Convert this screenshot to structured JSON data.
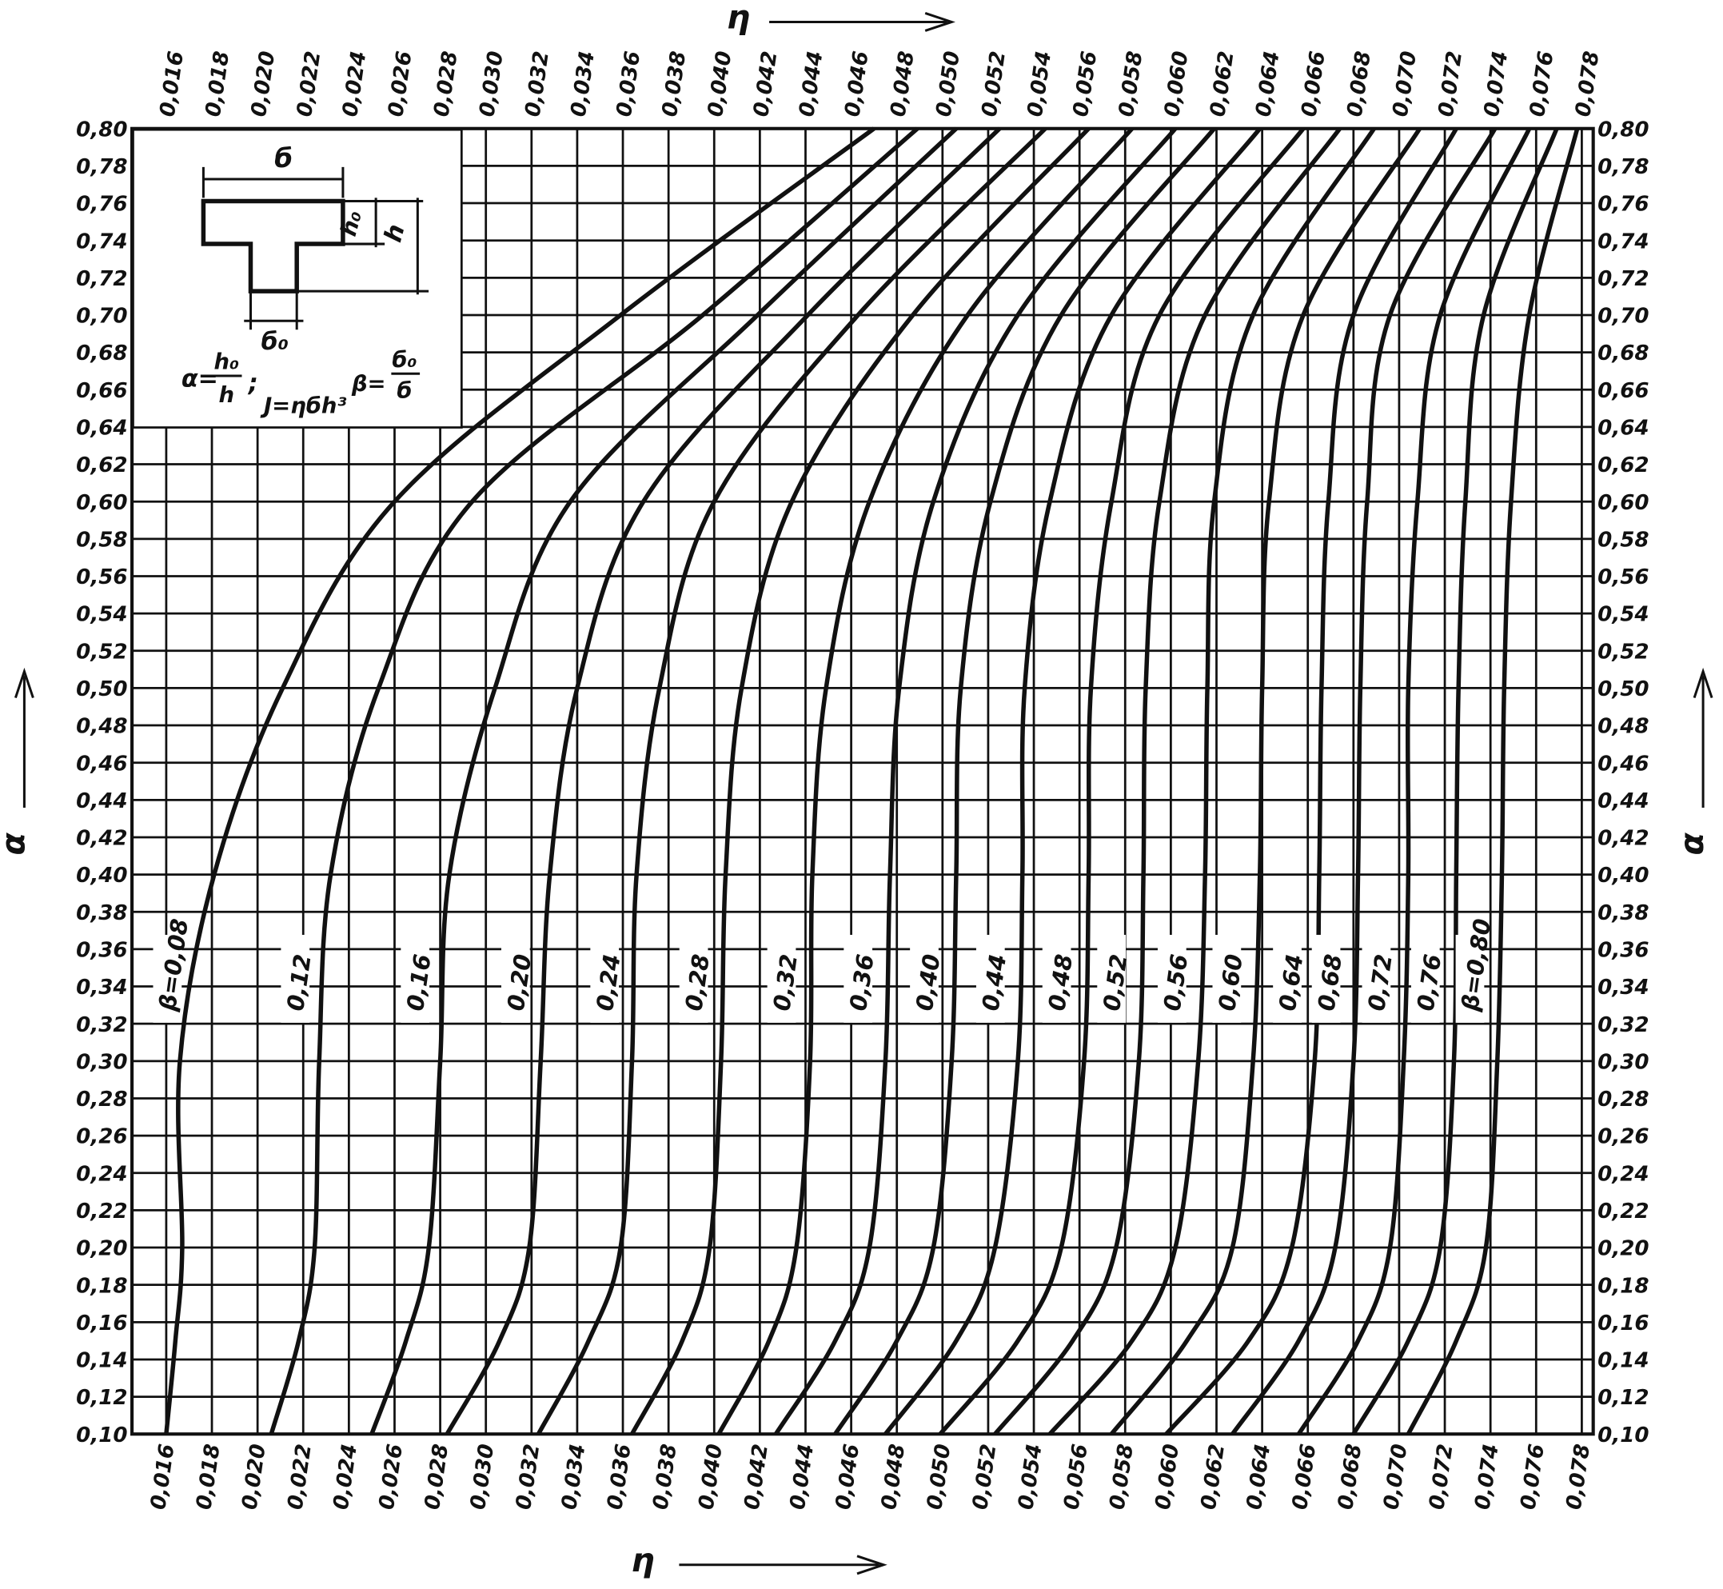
{
  "chart_data": {
    "type": "line",
    "x_label": "η",
    "y_label": "α",
    "xlim": [
      0.0145,
      0.0785
    ],
    "ylim": [
      0.1,
      0.8
    ],
    "grid": true,
    "color": "#111111",
    "xticks": [
      {
        "value": 0.016,
        "label": "0,016"
      },
      {
        "value": 0.018,
        "label": "0,018"
      },
      {
        "value": 0.02,
        "label": "0,020"
      },
      {
        "value": 0.022,
        "label": "0,022"
      },
      {
        "value": 0.024,
        "label": "0,024"
      },
      {
        "value": 0.026,
        "label": "0,026"
      },
      {
        "value": 0.028,
        "label": "0,028"
      },
      {
        "value": 0.03,
        "label": "0,030"
      },
      {
        "value": 0.032,
        "label": "0,032"
      },
      {
        "value": 0.034,
        "label": "0,034"
      },
      {
        "value": 0.036,
        "label": "0,036"
      },
      {
        "value": 0.038,
        "label": "0,038"
      },
      {
        "value": 0.04,
        "label": "0,040"
      },
      {
        "value": 0.042,
        "label": "0,042"
      },
      {
        "value": 0.044,
        "label": "0,044"
      },
      {
        "value": 0.046,
        "label": "0,046"
      },
      {
        "value": 0.048,
        "label": "0,048"
      },
      {
        "value": 0.05,
        "label": "0,050"
      },
      {
        "value": 0.052,
        "label": "0,052"
      },
      {
        "value": 0.054,
        "label": "0,054"
      },
      {
        "value": 0.056,
        "label": "0,056"
      },
      {
        "value": 0.058,
        "label": "0,058"
      },
      {
        "value": 0.06,
        "label": "0,060"
      },
      {
        "value": 0.062,
        "label": "0,062"
      },
      {
        "value": 0.064,
        "label": "0,064"
      },
      {
        "value": 0.066,
        "label": "0,066"
      },
      {
        "value": 0.068,
        "label": "0,068"
      },
      {
        "value": 0.07,
        "label": "0,070"
      },
      {
        "value": 0.072,
        "label": "0,072"
      },
      {
        "value": 0.074,
        "label": "0,074"
      },
      {
        "value": 0.076,
        "label": "0,076"
      },
      {
        "value": 0.078,
        "label": "0,078"
      }
    ],
    "yticks": [
      {
        "value": 0.1,
        "label": "0,10"
      },
      {
        "value": 0.12,
        "label": "0,12"
      },
      {
        "value": 0.14,
        "label": "0,14"
      },
      {
        "value": 0.16,
        "label": "0,16"
      },
      {
        "value": 0.18,
        "label": "0,18"
      },
      {
        "value": 0.2,
        "label": "0,20"
      },
      {
        "value": 0.22,
        "label": "0,22"
      },
      {
        "value": 0.24,
        "label": "0,24"
      },
      {
        "value": 0.26,
        "label": "0,26"
      },
      {
        "value": 0.28,
        "label": "0,28"
      },
      {
        "value": 0.3,
        "label": "0,30"
      },
      {
        "value": 0.32,
        "label": "0,32"
      },
      {
        "value": 0.34,
        "label": "0,34"
      },
      {
        "value": 0.36,
        "label": "0,36"
      },
      {
        "value": 0.38,
        "label": "0,38"
      },
      {
        "value": 0.4,
        "label": "0,40"
      },
      {
        "value": 0.42,
        "label": "0,42"
      },
      {
        "value": 0.44,
        "label": "0,44"
      },
      {
        "value": 0.46,
        "label": "0,46"
      },
      {
        "value": 0.48,
        "label": "0,48"
      },
      {
        "value": 0.5,
        "label": "0,50"
      },
      {
        "value": 0.52,
        "label": "0,52"
      },
      {
        "value": 0.54,
        "label": "0,54"
      },
      {
        "value": 0.56,
        "label": "0,56"
      },
      {
        "value": 0.58,
        "label": "0,58"
      },
      {
        "value": 0.6,
        "label": "0,60"
      },
      {
        "value": 0.62,
        "label": "0,62"
      },
      {
        "value": 0.64,
        "label": "0,64"
      },
      {
        "value": 0.66,
        "label": "0,66"
      },
      {
        "value": 0.68,
        "label": "0,68"
      },
      {
        "value": 0.7,
        "label": "0,70"
      },
      {
        "value": 0.72,
        "label": "0,72"
      },
      {
        "value": 0.74,
        "label": "0,74"
      },
      {
        "value": 0.76,
        "label": "0,76"
      },
      {
        "value": 0.78,
        "label": "0,78"
      },
      {
        "value": 0.8,
        "label": "0,80"
      }
    ],
    "y": [
      0.1,
      0.15,
      0.2,
      0.3,
      0.4,
      0.5,
      0.6,
      0.7,
      0.8
    ],
    "series": [
      {
        "name": "β=0,08",
        "values": [
          0.016,
          0.0164,
          0.0167,
          0.0166,
          0.0181,
          0.0211,
          0.026,
          0.0359,
          0.047
        ]
      },
      {
        "name": "0,12",
        "values": [
          0.0206,
          0.0218,
          0.0225,
          0.0227,
          0.0232,
          0.0253,
          0.0294,
          0.0395,
          0.0489
        ]
      },
      {
        "name": "0,16",
        "values": [
          0.025,
          0.0265,
          0.0275,
          0.028,
          0.0284,
          0.0304,
          0.0337,
          0.0419,
          0.0506
        ]
      },
      {
        "name": "0,20",
        "values": [
          0.0283,
          0.0306,
          0.0319,
          0.0324,
          0.0328,
          0.034,
          0.0369,
          0.0441,
          0.0525
        ]
      },
      {
        "name": "0,24",
        "values": [
          0.0323,
          0.0345,
          0.0359,
          0.0364,
          0.0366,
          0.0376,
          0.04,
          0.0463,
          0.0545
        ]
      },
      {
        "name": "0,28",
        "values": [
          0.0364,
          0.0386,
          0.0398,
          0.0403,
          0.0405,
          0.0412,
          0.0434,
          0.0487,
          0.0564
        ]
      },
      {
        "name": "0,32",
        "values": [
          0.0402,
          0.0424,
          0.0436,
          0.0442,
          0.0443,
          0.0449,
          0.0468,
          0.0511,
          0.0583
        ]
      },
      {
        "name": "0,36",
        "values": [
          0.0427,
          0.0453,
          0.0468,
          0.0475,
          0.0477,
          0.0481,
          0.0496,
          0.0533,
          0.0602
        ]
      },
      {
        "name": "0,40",
        "values": [
          0.0453,
          0.048,
          0.0496,
          0.0504,
          0.0506,
          0.0508,
          0.0521,
          0.0552,
          0.0619
        ]
      },
      {
        "name": "0,44",
        "values": [
          0.0475,
          0.0506,
          0.0523,
          0.0533,
          0.0535,
          0.0536,
          0.0547,
          0.0574,
          0.0639
        ]
      },
      {
        "name": "0,48",
        "values": [
          0.0499,
          0.0533,
          0.0552,
          0.0562,
          0.0564,
          0.0565,
          0.0574,
          0.0595,
          0.0658
        ]
      },
      {
        "name": "0,52",
        "values": [
          0.0523,
          0.0557,
          0.0576,
          0.0586,
          0.0588,
          0.0589,
          0.0595,
          0.0615,
          0.0674
        ]
      },
      {
        "name": "0,56",
        "values": [
          0.0547,
          0.0583,
          0.0602,
          0.0612,
          0.0615,
          0.0616,
          0.0619,
          0.0636,
          0.0689
        ]
      },
      {
        "name": "0,60",
        "values": [
          0.0574,
          0.0607,
          0.0627,
          0.0636,
          0.0639,
          0.064,
          0.0643,
          0.0658,
          0.0709
        ]
      },
      {
        "name": "0,64",
        "values": [
          0.0598,
          0.0634,
          0.0653,
          0.0663,
          0.0665,
          0.0666,
          0.0669,
          0.068,
          0.0725
        ]
      },
      {
        "name": "0,68",
        "values": [
          0.0627,
          0.0656,
          0.0672,
          0.068,
          0.0682,
          0.0683,
          0.0686,
          0.0696,
          0.0742
        ]
      },
      {
        "name": "0,72",
        "values": [
          0.0656,
          0.0682,
          0.0696,
          0.0702,
          0.0704,
          0.0704,
          0.0708,
          0.0718,
          0.0757
        ]
      },
      {
        "name": "0,76",
        "values": [
          0.068,
          0.0704,
          0.0718,
          0.0724,
          0.0725,
          0.0726,
          0.0729,
          0.0737,
          0.0769
        ]
      },
      {
        "name": "β=0,80",
        "values": [
          0.0704,
          0.0725,
          0.0738,
          0.0743,
          0.0745,
          0.0746,
          0.0749,
          0.0757,
          0.0778
        ]
      }
    ],
    "inset": {
      "b": "б",
      "h0": "h₀",
      "h": "h",
      "b0": "б₀",
      "alpha_eq": "α=",
      "alpha_num": "h₀",
      "alpha_den": "h",
      "semicolon": ";",
      "inertia": "J=ηбh³",
      "beta_eq": "β=",
      "beta_num": "б₀",
      "beta_den": "б"
    }
  }
}
